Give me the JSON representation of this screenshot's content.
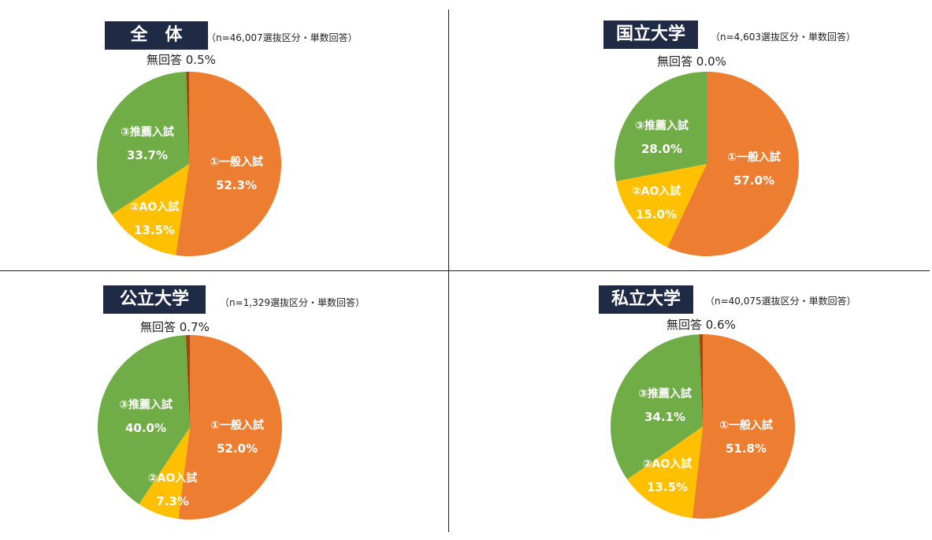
{
  "colors": {
    "general": "#ed7d31",
    "ao": "#ffc000",
    "recommend": "#70ad47",
    "none": "#9e480e",
    "title_bg": "#1f2a44"
  },
  "chart_data": [
    {
      "type": "pie",
      "title": "全　体",
      "subtitle": "（n=46,007選抜区分・単数回答）",
      "no_answer_label": "無回答 0.5%",
      "slices": [
        {
          "name": "①一般入試",
          "pct": "52.3%",
          "value": 52.3
        },
        {
          "name": "②AO入試",
          "pct": "13.5%",
          "value": 13.5
        },
        {
          "name": "③推薦入試",
          "pct": "33.7%",
          "value": 33.7
        },
        {
          "name": "無回答",
          "pct": "0.5%",
          "value": 0.5
        }
      ]
    },
    {
      "type": "pie",
      "title": "国立大学",
      "subtitle": "（n=4,603選抜区分・単数回答）",
      "no_answer_label": "無回答 0.0%",
      "slices": [
        {
          "name": "①一般入試",
          "pct": "57.0%",
          "value": 57.0
        },
        {
          "name": "②AO入試",
          "pct": "15.0%",
          "value": 15.0
        },
        {
          "name": "③推薦入試",
          "pct": "28.0%",
          "value": 28.0
        },
        {
          "name": "無回答",
          "pct": "0.0%",
          "value": 0.0
        }
      ]
    },
    {
      "type": "pie",
      "title": "公立大学",
      "subtitle": "（n=1,329選抜区分・単数回答）",
      "no_answer_label": "無回答 0.7%",
      "slices": [
        {
          "name": "①一般入試",
          "pct": "52.0%",
          "value": 52.0
        },
        {
          "name": "②AO入試",
          "pct": "7.3%",
          "value": 7.3
        },
        {
          "name": "③推薦入試",
          "pct": "40.0%",
          "value": 40.0
        },
        {
          "name": "無回答",
          "pct": "0.7%",
          "value": 0.7
        }
      ]
    },
    {
      "type": "pie",
      "title": "私立大学",
      "subtitle": "（n=40,075選抜区分・単数回答）",
      "no_answer_label": "無回答 0.6%",
      "slices": [
        {
          "name": "①一般入試",
          "pct": "51.8%",
          "value": 51.8
        },
        {
          "name": "②AO入試",
          "pct": "13.5%",
          "value": 13.5
        },
        {
          "name": "③推薦入試",
          "pct": "34.1%",
          "value": 34.1
        },
        {
          "name": "無回答",
          "pct": "0.6%",
          "value": 0.6
        }
      ]
    }
  ]
}
